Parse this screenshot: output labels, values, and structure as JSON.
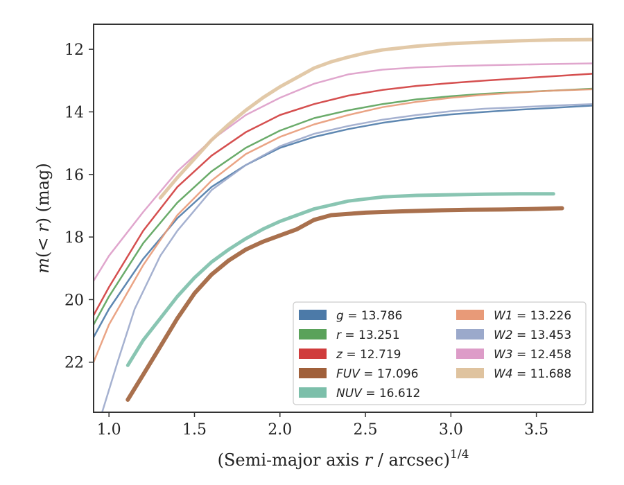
{
  "chart_data": {
    "type": "line",
    "xlabel_main": "(Semi-major axis ",
    "xlabel_var": "r",
    "xlabel_rest": " / arcsec)",
    "xlabel_exp": "1/4",
    "ylabel_pre": "m",
    "ylabel_paren": "(< ",
    "ylabel_var": "r",
    "ylabel_post": ") (mag)",
    "xlim": [
      0.91,
      3.83
    ],
    "ylim": [
      23.6,
      11.2
    ],
    "y_inverted": true,
    "grid": false,
    "legend_position": "lower-right",
    "x_ticks": [
      1.0,
      1.5,
      2.0,
      2.5,
      3.0,
      3.5
    ],
    "x_tick_labels": [
      "1.0",
      "1.5",
      "2.0",
      "2.5",
      "3.0",
      "3.5"
    ],
    "y_ticks": [
      12,
      14,
      16,
      18,
      20,
      22
    ],
    "y_tick_labels": [
      "12",
      "14",
      "16",
      "18",
      "20",
      "22"
    ],
    "series": [
      {
        "name": "g",
        "value": "13.786",
        "color": "#4c7aa8",
        "width": 2.5,
        "x": [
          0.91,
          1.0,
          1.2,
          1.4,
          1.6,
          1.8,
          2.0,
          2.2,
          2.4,
          2.6,
          2.8,
          3.0,
          3.2,
          3.4,
          3.6,
          3.83
        ],
        "y": [
          21.2,
          20.3,
          18.7,
          17.4,
          16.4,
          15.7,
          15.15,
          14.8,
          14.55,
          14.35,
          14.2,
          14.08,
          14.0,
          13.93,
          13.87,
          13.8
        ]
      },
      {
        "name": "r",
        "value": "13.251",
        "color": "#5aa25a",
        "width": 2.5,
        "x": [
          0.91,
          1.0,
          1.2,
          1.4,
          1.6,
          1.8,
          2.0,
          2.2,
          2.4,
          2.6,
          2.8,
          3.0,
          3.2,
          3.4,
          3.6,
          3.83
        ],
        "y": [
          20.8,
          19.9,
          18.2,
          16.9,
          15.9,
          15.15,
          14.6,
          14.2,
          13.95,
          13.75,
          13.6,
          13.5,
          13.42,
          13.37,
          13.32,
          13.26
        ]
      },
      {
        "name": "z",
        "value": "12.719",
        "color": "#d03c3c",
        "width": 2.5,
        "x": [
          0.91,
          1.0,
          1.2,
          1.4,
          1.6,
          1.8,
          2.0,
          2.2,
          2.4,
          2.6,
          2.8,
          3.0,
          3.2,
          3.4,
          3.6,
          3.83
        ],
        "y": [
          20.5,
          19.6,
          17.8,
          16.4,
          15.4,
          14.65,
          14.1,
          13.75,
          13.48,
          13.3,
          13.17,
          13.08,
          13.0,
          12.93,
          12.86,
          12.78
        ]
      },
      {
        "name": "FUV",
        "value": "17.096",
        "color": "#a0603a",
        "width": 6,
        "x": [
          1.11,
          1.2,
          1.3,
          1.4,
          1.5,
          1.6,
          1.7,
          1.8,
          1.9,
          2.0,
          2.1,
          2.2,
          2.3,
          2.5,
          2.7,
          2.9,
          3.1,
          3.3,
          3.5,
          3.65
        ],
        "y": [
          23.2,
          22.4,
          21.5,
          20.6,
          19.8,
          19.2,
          18.75,
          18.4,
          18.15,
          17.95,
          17.75,
          17.45,
          17.3,
          17.22,
          17.18,
          17.15,
          17.13,
          17.12,
          17.1,
          17.08
        ]
      },
      {
        "name": "NUV",
        "value": "16.612",
        "color": "#7cbfaa",
        "width": 5,
        "x": [
          1.11,
          1.2,
          1.3,
          1.4,
          1.5,
          1.6,
          1.7,
          1.8,
          1.9,
          2.0,
          2.2,
          2.4,
          2.6,
          2.8,
          3.0,
          3.2,
          3.4,
          3.6
        ],
        "y": [
          22.1,
          21.3,
          20.6,
          19.9,
          19.3,
          18.8,
          18.4,
          18.05,
          17.75,
          17.5,
          17.1,
          16.85,
          16.72,
          16.67,
          16.65,
          16.63,
          16.62,
          16.62
        ]
      },
      {
        "name": "W1",
        "value": "13.226",
        "color": "#e89a78",
        "width": 2.5,
        "x": [
          0.91,
          1.0,
          1.2,
          1.4,
          1.6,
          1.8,
          2.0,
          2.2,
          2.4,
          2.6,
          2.8,
          3.0,
          3.2,
          3.4,
          3.6,
          3.83
        ],
        "y": [
          22.0,
          20.8,
          18.9,
          17.3,
          16.2,
          15.35,
          14.8,
          14.4,
          14.1,
          13.85,
          13.68,
          13.55,
          13.45,
          13.38,
          13.32,
          13.28
        ]
      },
      {
        "name": "W2",
        "value": "13.453",
        "color": "#9ba9cb",
        "width": 2.5,
        "x": [
          0.96,
          1.05,
          1.15,
          1.3,
          1.4,
          1.6,
          1.8,
          2.0,
          2.2,
          2.4,
          2.6,
          2.8,
          3.0,
          3.2,
          3.4,
          3.6,
          3.83
        ],
        "y": [
          23.6,
          22.0,
          20.3,
          18.6,
          17.8,
          16.5,
          15.7,
          15.1,
          14.7,
          14.45,
          14.25,
          14.1,
          13.98,
          13.9,
          13.85,
          13.8,
          13.75
        ]
      },
      {
        "name": "W3",
        "value": "12.458",
        "color": "#dd9cc8",
        "width": 2.5,
        "x": [
          0.91,
          1.0,
          1.2,
          1.4,
          1.6,
          1.8,
          2.0,
          2.2,
          2.4,
          2.6,
          2.8,
          3.0,
          3.2,
          3.4,
          3.6,
          3.83
        ],
        "y": [
          19.4,
          18.6,
          17.2,
          15.9,
          14.9,
          14.1,
          13.55,
          13.1,
          12.8,
          12.65,
          12.58,
          12.54,
          12.51,
          12.49,
          12.47,
          12.45
        ]
      },
      {
        "name": "W4",
        "value": "11.688",
        "color": "#dfc39f",
        "width": 5,
        "x": [
          1.3,
          1.4,
          1.5,
          1.6,
          1.7,
          1.8,
          1.9,
          2.0,
          2.1,
          2.2,
          2.3,
          2.4,
          2.5,
          2.6,
          2.8,
          3.0,
          3.2,
          3.4,
          3.6,
          3.83
        ],
        "y": [
          16.75,
          16.1,
          15.5,
          14.9,
          14.4,
          13.95,
          13.55,
          13.2,
          12.9,
          12.6,
          12.4,
          12.25,
          12.12,
          12.02,
          11.9,
          11.82,
          11.77,
          11.73,
          11.7,
          11.69
        ]
      }
    ],
    "legend_columns": [
      [
        "g",
        "r",
        "z",
        "FUV",
        "NUV"
      ],
      [
        "W1",
        "W2",
        "W3",
        "W4"
      ]
    ]
  }
}
